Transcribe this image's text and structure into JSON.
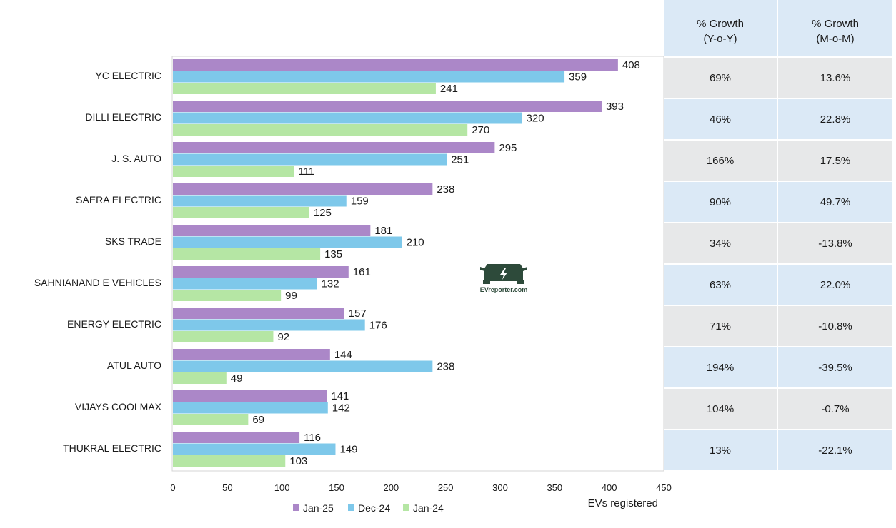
{
  "chart_data": {
    "type": "bar",
    "orientation": "horizontal",
    "categories": [
      "YC ELECTRIC",
      "DILLI ELECTRIC",
      "J. S. AUTO",
      "SAERA ELECTRIC",
      "SKS TRADE",
      "SAHNIANAND E VEHICLES",
      "ENERGY ELECTRIC",
      "ATUL AUTO",
      "VIJAYS COOLMAX",
      "THUKRAL ELECTRIC"
    ],
    "series": [
      {
        "name": "Jan-25",
        "color": "#ab87c8",
        "values": [
          408,
          393,
          295,
          238,
          181,
          161,
          157,
          144,
          141,
          116
        ]
      },
      {
        "name": "Dec-24",
        "color": "#7ec8ea",
        "values": [
          359,
          320,
          251,
          159,
          210,
          132,
          176,
          238,
          142,
          149
        ]
      },
      {
        "name": "Jan-24",
        "color": "#b5e6a4",
        "values": [
          241,
          270,
          111,
          125,
          135,
          99,
          92,
          49,
          69,
          103
        ]
      }
    ],
    "xlabel": "EVs registered",
    "xlim": [
      0,
      450
    ],
    "xticks": [
      0,
      50,
      100,
      150,
      200,
      250,
      300,
      350,
      400,
      450
    ],
    "legend_position": "bottom",
    "grid": false
  },
  "table": {
    "headers": [
      {
        "line1": "% Growth",
        "line2": "(Y-o-Y)"
      },
      {
        "line1": "% Growth",
        "line2": "(M-o-M)"
      }
    ],
    "rows": [
      [
        "69%",
        "13.6%"
      ],
      [
        "46%",
        "22.8%"
      ],
      [
        "166%",
        "17.5%"
      ],
      [
        "90%",
        "49.7%"
      ],
      [
        "34%",
        "-13.8%"
      ],
      [
        "63%",
        "22.0%"
      ],
      [
        "71%",
        "-10.8%"
      ],
      [
        "194%",
        "-39.5%"
      ],
      [
        "104%",
        "-0.7%"
      ],
      [
        "13%",
        "-22.1%"
      ]
    ],
    "colors": {
      "header": "#dbe9f6",
      "odd": "#e7e8e9",
      "even": "#dbe9f6"
    }
  },
  "watermark": {
    "text": "EVreporter.com",
    "icon": "car-icon"
  }
}
